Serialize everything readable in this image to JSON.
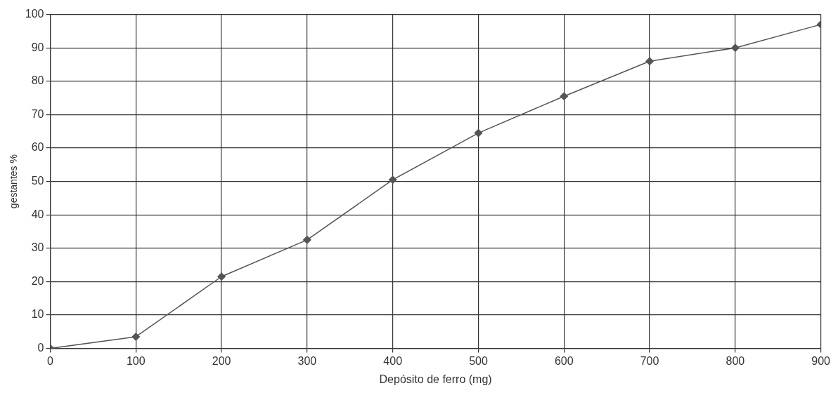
{
  "chart_data": {
    "type": "line",
    "xlabel": "Depósito de ferro (mg)",
    "ylabel": "gestantes %",
    "x": [
      0,
      100,
      200,
      300,
      400,
      500,
      600,
      700,
      800,
      900
    ],
    "series": [
      {
        "color": "#555555",
        "values": [
          0,
          3.5,
          21.5,
          32.5,
          50.5,
          64.5,
          75.5,
          86,
          90,
          97
        ]
      }
    ],
    "xlim": [
      0,
      900
    ],
    "xticks": [
      0,
      100,
      200,
      300,
      400,
      500,
      600,
      700,
      800,
      900
    ],
    "ylim": [
      0,
      100
    ],
    "yticks": [
      0,
      10,
      20,
      30,
      40,
      50,
      60,
      70,
      80,
      90,
      100
    ],
    "grid": true,
    "legend": false,
    "marker": "diamond",
    "line_style": "solid"
  }
}
